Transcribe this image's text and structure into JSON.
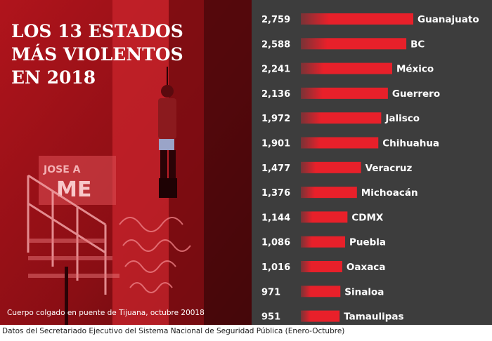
{
  "photo": {
    "title_lines": [
      "LOS 13 ESTADOS",
      "MÁS VIOLENTOS",
      "EN 2018"
    ],
    "caption": "Cuerpo colgado en puente de Tijuana, octubre 20018",
    "sign_text_1": "JOSE A",
    "sign_text_2": "ME"
  },
  "footer": "Datos del Secretariado Ejecutivo del Sistema Nacional de Seguridad Pública (Enero-Octubre)",
  "chart_data": {
    "type": "bar",
    "orientation": "horizontal",
    "title": "LOS 13 ESTADOS MÁS VIOLENTOS EN 2018",
    "categories": [
      "Guanajuato",
      "BC",
      "México",
      "Guerrero",
      "Jalisco",
      "Chihuahua",
      "Veracruz",
      "Michoacán",
      "CDMX",
      "Puebla",
      "Oaxaca",
      "Sinaloa",
      "Tamaulipas"
    ],
    "values": [
      2759,
      2588,
      2241,
      2136,
      1972,
      1901,
      1477,
      1376,
      1144,
      1086,
      1016,
      971,
      951
    ],
    "value_labels": [
      "2,759",
      "2,588",
      "2,241",
      "2,136",
      "1,972",
      "1,901",
      "1,477",
      "1,376",
      "1,144",
      "1,086",
      "1,016",
      "971",
      "951"
    ],
    "bar_color": "#e8202a",
    "background": "#3d3d3d"
  }
}
